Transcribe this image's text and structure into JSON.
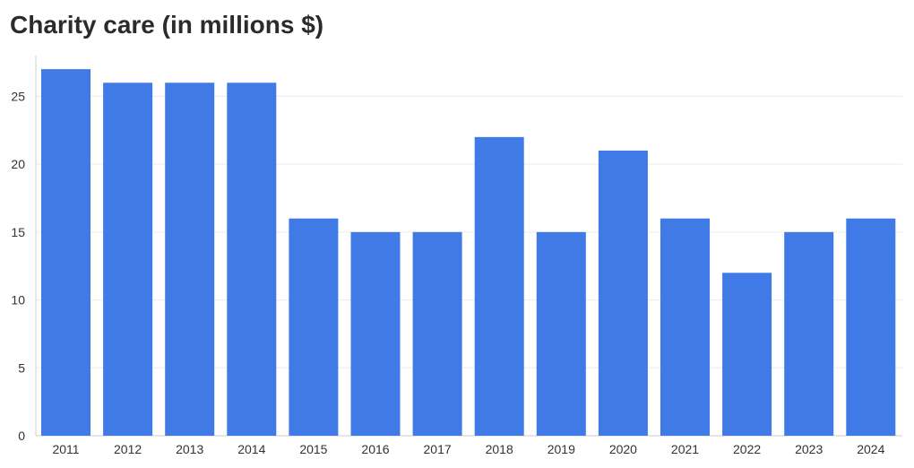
{
  "chart_data": {
    "type": "bar",
    "title": "Charity care (in millions $)",
    "xlabel": "",
    "ylabel": "",
    "categories": [
      "2011",
      "2012",
      "2013",
      "2014",
      "2015",
      "2016",
      "2017",
      "2018",
      "2019",
      "2020",
      "2021",
      "2022",
      "2023",
      "2024"
    ],
    "values": [
      27,
      26,
      26,
      26,
      16,
      15,
      15,
      22,
      15,
      21,
      16,
      12,
      15,
      16
    ],
    "ylim": [
      0,
      28
    ],
    "yticks": [
      "0",
      "5",
      "10",
      "15",
      "20",
      "25"
    ],
    "grid": true,
    "legend": "none",
    "colors": {
      "bar": "#3f7ae6",
      "grid": "#ececec",
      "axis": "#cccccc",
      "text": "#333333"
    }
  }
}
